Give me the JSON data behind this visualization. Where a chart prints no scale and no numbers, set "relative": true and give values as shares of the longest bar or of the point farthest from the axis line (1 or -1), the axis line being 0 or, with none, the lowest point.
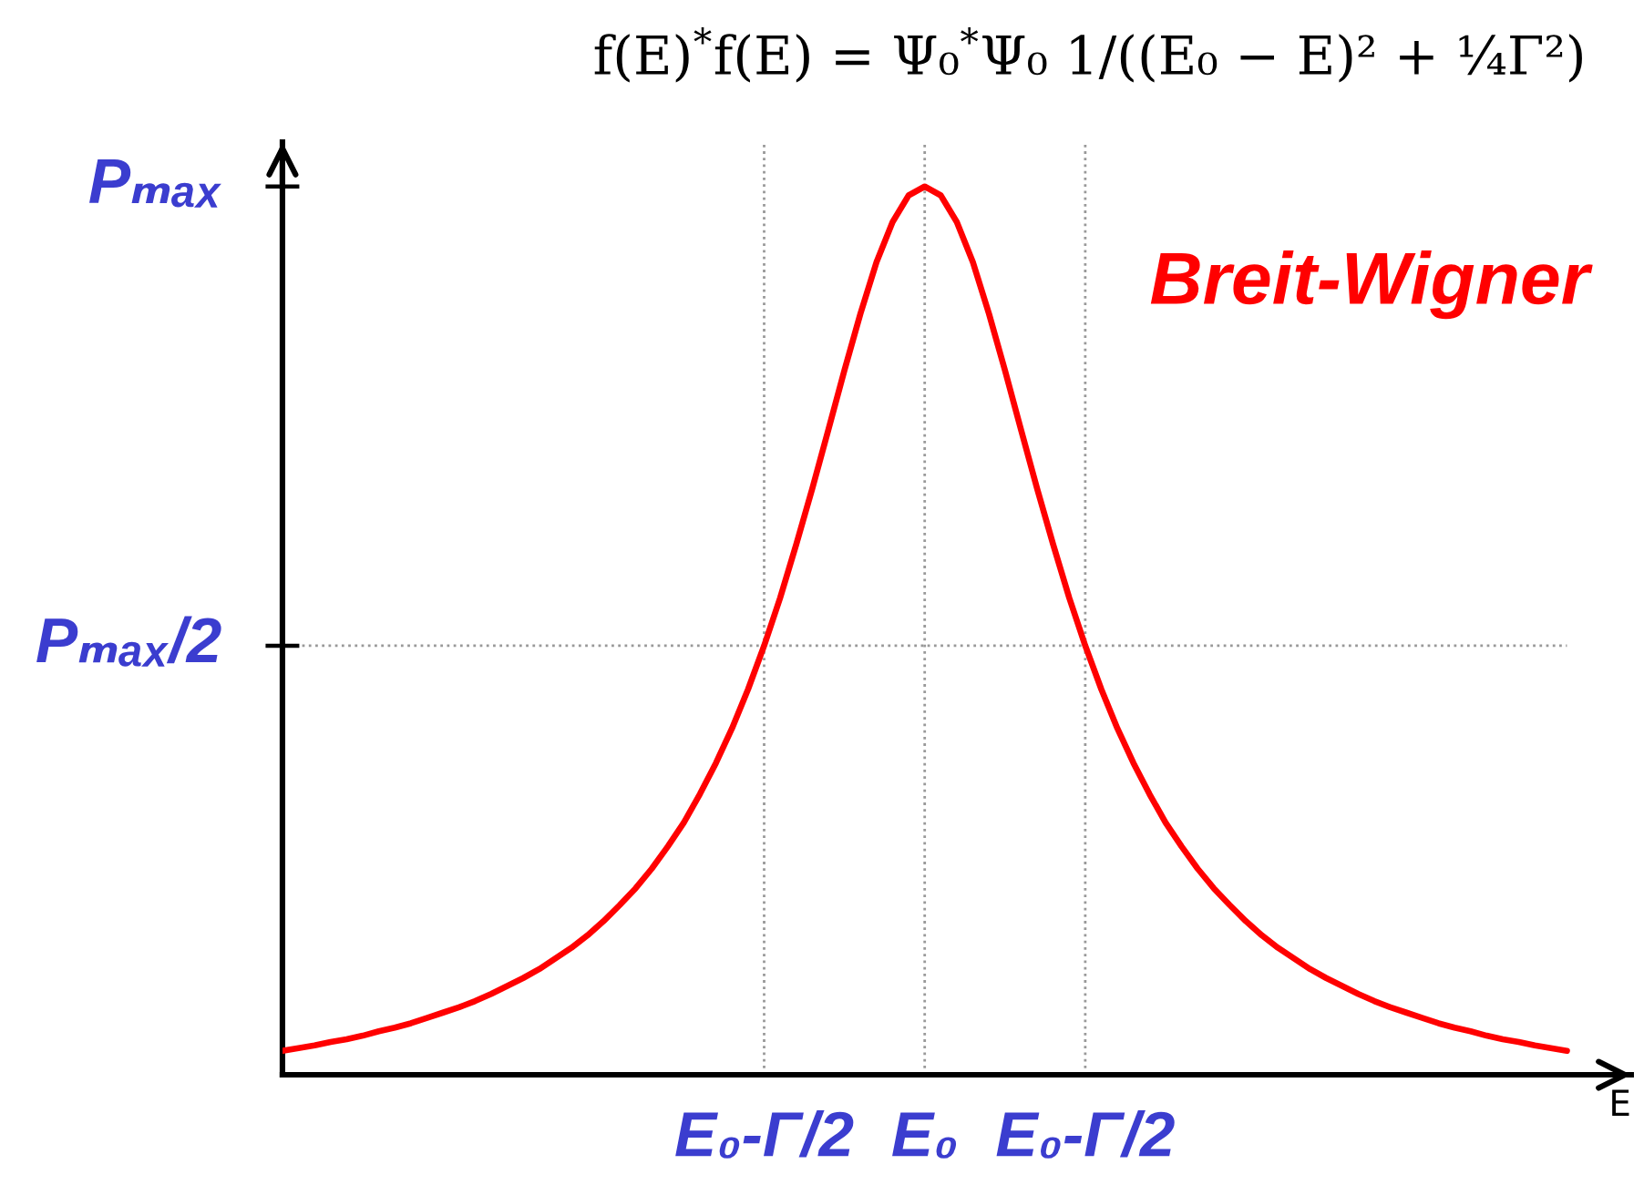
{
  "chart_data": {
    "type": "line",
    "relative": true,
    "grid": "x",
    "title": "f(E)$^{*}$f(E) = Ψ₀$^{*}$Ψ₀ 1/((E₀ − E)² + ¼Γ²)",
    "xlabel": "E",
    "categories": [
      null,
      null,
      null,
      null,
      null,
      null,
      null,
      null,
      null,
      null,
      null,
      null,
      null,
      null,
      null,
      null,
      null,
      null,
      null,
      null,
      null,
      null,
      null,
      null,
      null,
      null,
      null,
      null,
      null,
      null,
      "E₀-Γ/2",
      null,
      null,
      null,
      null,
      null,
      null,
      null,
      null,
      null,
      "E₀",
      null,
      null,
      null,
      null,
      null,
      null,
      null,
      null,
      null,
      "E₀-Γ/2",
      null,
      null,
      null,
      null,
      null,
      null,
      null,
      null,
      null,
      null,
      null,
      null,
      null,
      null,
      null,
      null,
      null,
      null,
      null,
      null,
      null,
      null,
      null,
      null,
      null,
      null,
      null,
      null,
      null,
      null
    ],
    "series": [
      {
        "name": "Breit-Wigner",
        "color": "#ff0000",
        "values": [
          0.027,
          0.03,
          0.033,
          0.037,
          0.04,
          0.044,
          0.049,
          0.053,
          0.058,
          0.064,
          0.07,
          0.076,
          0.083,
          0.091,
          0.1,
          0.109,
          0.119,
          0.131,
          0.143,
          0.157,
          0.173,
          0.191,
          0.21,
          0.232,
          0.257,
          0.284,
          0.316,
          0.351,
          0.39,
          0.434,
          0.483,
          0.537,
          0.597,
          0.66,
          0.726,
          0.793,
          0.857,
          0.915,
          0.96,
          0.99,
          1.0,
          0.99,
          0.96,
          0.915,
          0.857,
          0.793,
          0.726,
          0.66,
          0.597,
          0.537,
          0.483,
          0.434,
          0.39,
          0.351,
          0.316,
          0.284,
          0.257,
          0.232,
          0.21,
          0.191,
          0.173,
          0.157,
          0.143,
          0.131,
          0.119,
          0.109,
          0.1,
          0.091,
          0.083,
          0.076,
          0.07,
          0.064,
          0.058,
          0.053,
          0.049,
          0.044,
          0.04,
          0.037,
          0.033,
          0.03,
          0.027
        ]
      }
    ],
    "ref_lines": [
      {
        "axis": "y",
        "value": 0.483,
        "label": "Pₘₐₓ/2",
        "color": "#999999",
        "line_style": "dotted"
      }
    ],
    "annotations": [
      "Pₘₐₓ"
    ]
  }
}
